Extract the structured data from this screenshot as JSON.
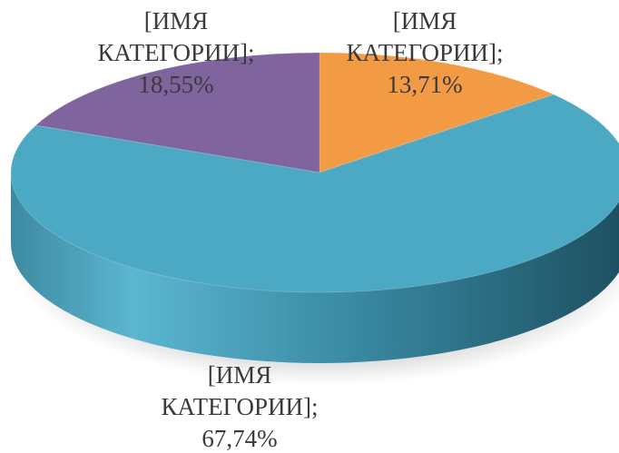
{
  "chart_data": {
    "type": "pie",
    "style": "3d",
    "slices": [
      {
        "label": "[ИМЯ КАТЕГОРИИ]",
        "value": 13.71,
        "value_text": "13,71%",
        "color": "#F39A45"
      },
      {
        "label": "[ИМЯ КАТЕГОРИИ]",
        "value": 67.74,
        "value_text": "67,74%",
        "color": "#4BA9C4"
      },
      {
        "label": "[ИМЯ КАТЕГОРИИ]",
        "value": 18.55,
        "value_text": "18,55%",
        "color": "#7F649E"
      }
    ],
    "label_lines": [
      [
        "[ИМЯ",
        "КАТЕГОРИИ];",
        "13,71%"
      ],
      [
        "[ИМЯ",
        "КАТЕГОРИИ];",
        "67,74%"
      ],
      [
        "[ИМЯ",
        "КАТЕГОРИИ];",
        "18,55%"
      ]
    ],
    "legend": "none"
  }
}
